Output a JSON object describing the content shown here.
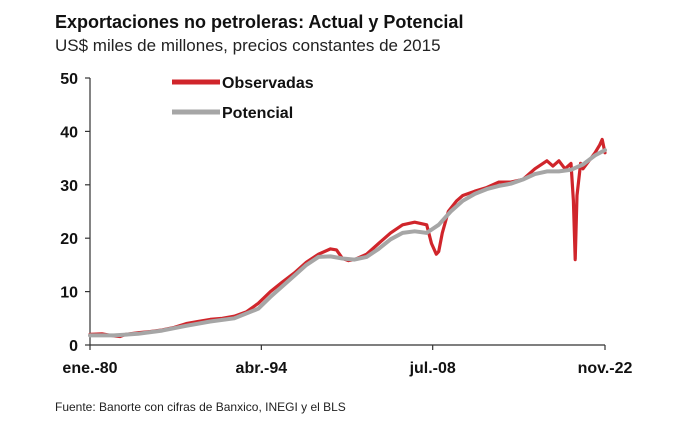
{
  "title": "Exportaciones no petroleras: Actual y Potencial",
  "subtitle": "US$ miles de millones, precios constantes de 2015",
  "source": "Fuente: Banorte con cifras de Banxico, INEGI y el BLS",
  "chart_data": {
    "type": "line",
    "title": "Exportaciones no petroleras: Actual y Potencial",
    "ylabel": "",
    "xlabel": "",
    "ylim": [
      0,
      50
    ],
    "yticks": [
      "0",
      "10",
      "20",
      "30",
      "40",
      "50"
    ],
    "xlim": [
      1980.0,
      2022.83
    ],
    "xticks": [
      {
        "label": "ene.-80",
        "x": 1980.0
      },
      {
        "label": "abr.-94",
        "x": 1994.25
      },
      {
        "label": "jul.-08",
        "x": 2008.5
      },
      {
        "label": "nov.-22",
        "x": 2022.83
      }
    ],
    "grid": false,
    "legend_position": "top-left",
    "series": [
      {
        "name": "Observadas",
        "color": "#d0252b",
        "x": [
          1980.0,
          1981.0,
          1982.0,
          1982.5,
          1983.0,
          1984.0,
          1985.0,
          1986.0,
          1987.0,
          1988.0,
          1989.0,
          1990.0,
          1991.0,
          1992.0,
          1993.0,
          1994.0,
          1995.0,
          1996.0,
          1997.0,
          1998.0,
          1999.0,
          2000.0,
          2000.5,
          2001.0,
          2001.5,
          2002.0,
          2003.0,
          2004.0,
          2005.0,
          2006.0,
          2007.0,
          2008.0,
          2008.4,
          2008.8,
          2009.0,
          2009.3,
          2009.8,
          2010.5,
          2011.0,
          2012.0,
          2013.0,
          2014.0,
          2015.0,
          2016.0,
          2017.0,
          2018.0,
          2018.5,
          2019.0,
          2019.5,
          2020.0,
          2020.2,
          2020.35,
          2020.5,
          2020.8,
          2021.0,
          2021.5,
          2022.0,
          2022.4,
          2022.6,
          2022.83
        ],
        "values": [
          2.0,
          2.1,
          1.7,
          1.6,
          2.0,
          2.3,
          2.5,
          2.8,
          3.3,
          4.0,
          4.4,
          4.8,
          5.0,
          5.4,
          6.2,
          7.8,
          10.0,
          11.8,
          13.5,
          15.5,
          17.0,
          18.0,
          17.8,
          16.2,
          15.8,
          16.0,
          17.0,
          19.0,
          21.0,
          22.5,
          23.0,
          22.5,
          19.0,
          17.0,
          17.5,
          21.0,
          25.0,
          27.0,
          28.0,
          28.8,
          29.5,
          30.5,
          30.5,
          31.0,
          33.0,
          34.5,
          33.5,
          34.5,
          33.0,
          34.0,
          27.0,
          16.0,
          28.0,
          34.0,
          33.0,
          34.5,
          36.0,
          37.5,
          38.5,
          36.0
        ]
      },
      {
        "name": "Potencial",
        "color": "#a6a6a6",
        "x": [
          1980.0,
          1982.0,
          1984.0,
          1986.0,
          1988.0,
          1990.0,
          1992.0,
          1994.0,
          1995.0,
          1996.0,
          1997.0,
          1998.0,
          1999.0,
          2000.0,
          2001.0,
          2002.0,
          2003.0,
          2004.0,
          2005.0,
          2006.0,
          2007.0,
          2008.0,
          2009.0,
          2010.0,
          2011.0,
          2012.0,
          2013.0,
          2014.0,
          2015.0,
          2016.0,
          2017.0,
          2018.0,
          2019.0,
          2020.0,
          2021.0,
          2022.0,
          2022.83
        ],
        "values": [
          1.8,
          1.8,
          2.1,
          2.7,
          3.6,
          4.4,
          5.0,
          6.8,
          9.0,
          11.0,
          13.0,
          15.0,
          16.5,
          16.6,
          16.2,
          16.0,
          16.5,
          18.0,
          19.8,
          21.0,
          21.3,
          21.0,
          22.5,
          25.0,
          27.0,
          28.3,
          29.2,
          29.8,
          30.2,
          31.0,
          32.0,
          32.5,
          32.5,
          32.8,
          33.8,
          35.5,
          36.5
        ]
      }
    ]
  }
}
